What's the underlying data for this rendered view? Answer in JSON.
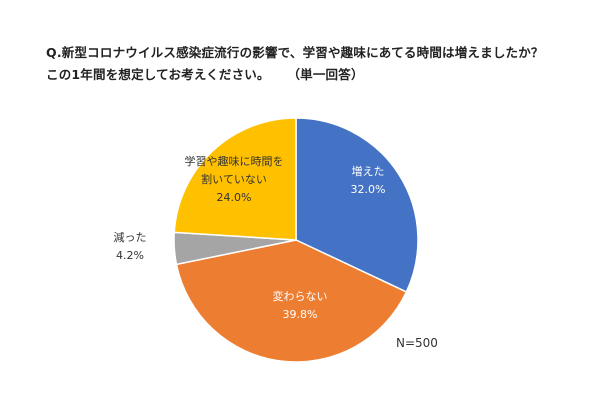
{
  "title": {
    "line1": "Q.新型コロナウイルス感染症流行の影響で、学習や趣味にあてる時間は増えましたか？",
    "line2": "この1年間を想定してお考えください。",
    "note": "（単一回答）"
  },
  "sample_size": "N=500",
  "chart_data": {
    "type": "pie",
    "title": "Q.新型コロナウイルス感染症流行の影響で、学習や趣味にあてる時間は増えましたか？ この1年間を想定してお考えください。 （単一回答）",
    "start": "12 o'clock",
    "direction": "clockwise",
    "slices": [
      {
        "label": "増えた",
        "label_lines": [
          "増えた"
        ],
        "value": 32.0,
        "value_label": "32.0%",
        "color": "#4472C4",
        "label_color": "#ffffff"
      },
      {
        "label": "変わらない",
        "label_lines": [
          "変わらない"
        ],
        "value": 39.8,
        "value_label": "39.8%",
        "color": "#ED7D31",
        "label_color": "#ffffff"
      },
      {
        "label": "減った",
        "label_lines": [
          "減った"
        ],
        "value": 4.2,
        "value_label": "4.2%",
        "color": "#A5A5A5",
        "label_color": "#333333"
      },
      {
        "label": "学習や趣味に時間を割いていない",
        "label_lines": [
          "学習や趣味に時間を",
          "割いていない"
        ],
        "value": 24.0,
        "value_label": "24.0%",
        "color": "#FFC000",
        "label_color": "#333333"
      }
    ],
    "legend": "none",
    "note": "N=500"
  }
}
